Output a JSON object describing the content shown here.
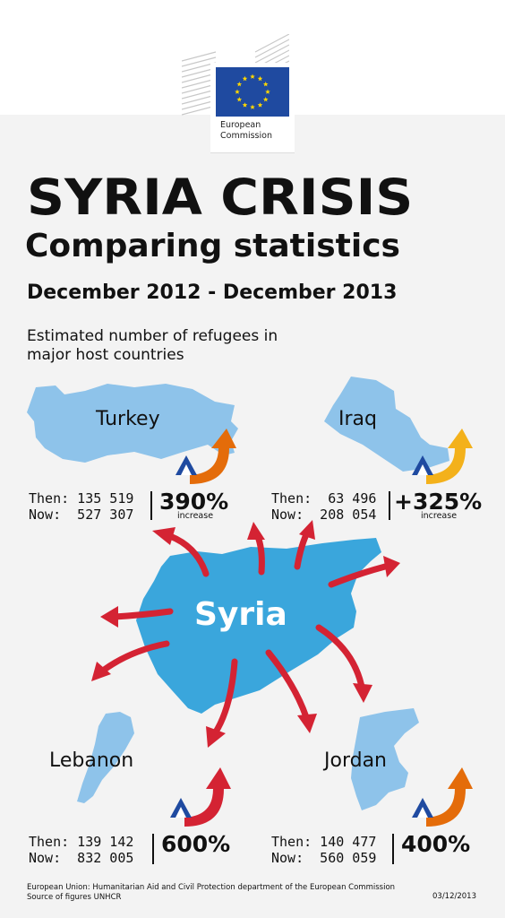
{
  "logo": {
    "line1": "European",
    "line2": "Commission"
  },
  "title": {
    "main": "SYRIA CRISIS",
    "sub": "Comparing statistics",
    "period": "December 2012 - December 2013"
  },
  "subtitle": {
    "line1": "Estimated number of refugees in",
    "line2": "major host countries"
  },
  "center": "Syria",
  "countries": {
    "turkey": {
      "name": "Turkey",
      "then": "Then: 135 519",
      "now": "Now:  527 307",
      "pct": "390%",
      "note": "increase"
    },
    "iraq": {
      "name": "Iraq",
      "then": "Then:  63 496",
      "now": "Now:  208 054",
      "pct": "+325%",
      "note": "increase"
    },
    "lebanon": {
      "name": "Lebanon",
      "then": "Then: 139 142",
      "now": "Now:  832 005",
      "pct": "600%"
    },
    "jordan": {
      "name": "Jordan",
      "then": "Then: 140 477",
      "now": "Now:  560 059",
      "pct": "400%"
    }
  },
  "footer": {
    "line1": "European Union: Humanitarian Aid and Civil Protection department of the European Commission",
    "line2": "Source of figures UNHCR",
    "date": "03/12/2013"
  },
  "colors": {
    "map": "#8ec3ea",
    "syria": "#3aa6dc",
    "arrow": "#d42333",
    "tent": "#1f4aa0"
  }
}
